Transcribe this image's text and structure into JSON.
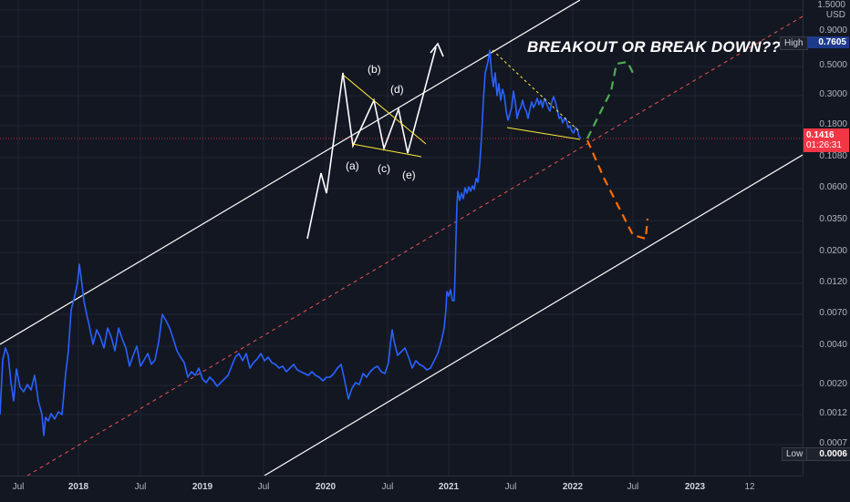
{
  "annotation": "BREAKOUT OR BREAK DOWN??",
  "wave_labels": [
    "(a)",
    "(b)",
    "(c)",
    "(d)",
    "(e)"
  ],
  "price_axis": {
    "currency": "USD",
    "ticks": [
      "1.5000",
      "0.9000",
      "0.5000",
      "0.3000",
      "0.1800",
      "0.1080",
      "0.0600",
      "0.0350",
      "0.0200",
      "0.0120",
      "0.0070",
      "0.0040",
      "0.0020",
      "0.0012",
      "0.0007"
    ],
    "high_label": "High",
    "high_value": "0.7605",
    "low_label": "Low",
    "low_value": "0.0006",
    "current_price": "0.1416",
    "countdown": "01:26:31"
  },
  "time_axis": {
    "ticks": [
      {
        "label": "Jul",
        "year": false
      },
      {
        "label": "2018",
        "year": true
      },
      {
        "label": "Jul",
        "year": false
      },
      {
        "label": "2019",
        "year": true
      },
      {
        "label": "Jul",
        "year": false
      },
      {
        "label": "2020",
        "year": true
      },
      {
        "label": "Jul",
        "year": false
      },
      {
        "label": "2021",
        "year": true
      },
      {
        "label": "Jul",
        "year": false
      },
      {
        "label": "2022",
        "year": true
      },
      {
        "label": "Jul",
        "year": false
      },
      {
        "label": "2023",
        "year": true
      },
      {
        "label": "12",
        "year": false
      }
    ]
  },
  "colors": {
    "background": "#131722",
    "price_line": "#2962ff",
    "channel": "#ffffff",
    "midline": "#ef5350",
    "triangle": "#ffeb3b",
    "breakout_arrow": "#4caf50",
    "breakdown_arrow": "#ff6d00",
    "current_price_badge": "#f23645",
    "high_badge": "#1e3a8a"
  },
  "chart_data": {
    "type": "line",
    "scale": "log",
    "series": [
      {
        "x": [
          "2017-06",
          "2017-07",
          "2017-08",
          "2017-09",
          "2017-10",
          "2017-11",
          "2017-12",
          "2018-01",
          "2018-02",
          "2018-03",
          "2018-04",
          "2018-05",
          "2018-06",
          "2018-07",
          "2018-08",
          "2018-09",
          "2018-10",
          "2018-11",
          "2018-12",
          "2019-01",
          "2019-02",
          "2019-03",
          "2019-04",
          "2019-05",
          "2019-06",
          "2019-07",
          "2019-08",
          "2019-09",
          "2019-10",
          "2019-11",
          "2019-12",
          "2020-01",
          "2020-02",
          "2020-03",
          "2020-04",
          "2020-05",
          "2020-06",
          "2020-07",
          "2020-08",
          "2020-09",
          "2020-10",
          "2020-11",
          "2020-12",
          "2021-01",
          "2021-02",
          "2021-03",
          "2021-04",
          "2021-05",
          "2021-06",
          "2021-07",
          "2021-08",
          "2021-09",
          "2021-10",
          "2021-11",
          "2021-12",
          "2022-01",
          "2022-02"
        ],
        "values": [
          0.0039,
          0.0037,
          0.0023,
          0.0028,
          0.0013,
          0.001,
          0.0016,
          0.01,
          0.008,
          0.005,
          0.006,
          0.0036,
          0.0038,
          0.0032,
          0.0035,
          0.0066,
          0.0036,
          0.0026,
          0.0022,
          0.0023,
          0.0021,
          0.0023,
          0.0028,
          0.0037,
          0.0035,
          0.0032,
          0.003,
          0.0028,
          0.0027,
          0.0026,
          0.0023,
          0.0024,
          0.0027,
          0.0017,
          0.0023,
          0.0026,
          0.003,
          0.0026,
          0.0037,
          0.003,
          0.0026,
          0.0034,
          0.009,
          0.03,
          0.06,
          0.09,
          0.7,
          0.35,
          0.28,
          0.22,
          0.26,
          0.23,
          0.25,
          0.19,
          0.19,
          0.16,
          0.1416
        ]
      }
    ],
    "ylim": [
      0.0006,
      1.5
    ],
    "current_price": 0.1416,
    "high": 0.7605,
    "low": 0.0006
  }
}
